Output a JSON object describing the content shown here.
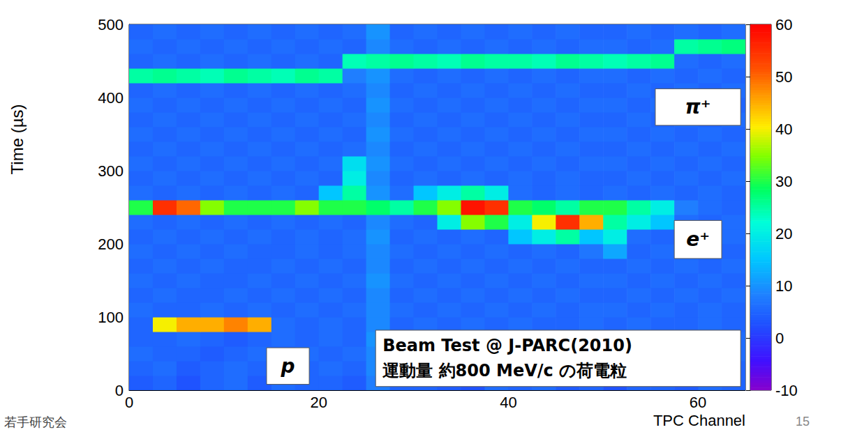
{
  "chart_data": {
    "type": "heatmap",
    "x_label": "TPC Channel",
    "y_label": "Time (µs)",
    "xlim": [
      0,
      65
    ],
    "xticks": [
      0,
      20,
      40,
      60
    ],
    "ylim": [
      0,
      500
    ],
    "yticks": [
      0,
      100,
      200,
      300,
      400,
      500
    ],
    "grid": false,
    "x_bins": [
      0,
      2.5,
      5,
      7.5,
      10,
      12.5,
      15,
      17.5,
      20,
      22.5,
      25,
      27.5,
      30,
      32.5,
      35,
      37.5,
      40,
      42.5,
      45,
      47.5,
      50,
      52.5,
      55,
      57.5,
      60,
      62.5,
      65
    ],
    "y_bins": [
      0,
      20,
      40,
      60,
      80,
      100,
      120,
      140,
      160,
      180,
      200,
      220,
      240,
      260,
      280,
      300,
      320,
      340,
      360,
      380,
      400,
      420,
      440,
      460,
      480,
      500
    ],
    "z": [
      [
        4,
        5,
        3,
        5,
        6,
        4,
        6,
        5,
        5,
        4,
        8,
        5,
        5,
        4,
        3,
        6,
        5,
        6,
        4,
        5,
        3,
        5,
        5,
        4,
        6,
        5
      ],
      [
        5,
        6,
        4,
        5,
        6,
        5,
        7,
        5,
        6,
        5,
        9,
        5,
        6,
        5,
        4,
        6,
        5,
        7,
        5,
        6,
        4,
        5,
        6,
        5,
        7,
        5
      ],
      [
        6,
        5,
        5,
        4,
        5,
        6,
        5,
        6,
        5,
        6,
        9,
        4,
        5,
        6,
        5,
        5,
        6,
        5,
        6,
        5,
        5,
        6,
        5,
        6,
        5,
        6
      ],
      [
        5,
        5,
        6,
        5,
        4,
        5,
        6,
        5,
        6,
        5,
        10,
        5,
        6,
        5,
        6,
        4,
        5,
        6,
        5,
        6,
        5,
        5,
        6,
        5,
        5,
        6
      ],
      [
        5,
        40,
        45,
        45,
        48,
        45,
        6,
        5,
        6,
        5,
        9,
        5,
        6,
        5,
        6,
        5,
        6,
        5,
        5,
        6,
        5,
        6,
        5,
        5,
        6,
        5
      ],
      [
        6,
        5,
        5,
        6,
        5,
        6,
        5,
        6,
        5,
        6,
        9,
        6,
        5,
        6,
        5,
        6,
        5,
        6,
        5,
        6,
        6,
        5,
        6,
        5,
        6,
        5
      ],
      [
        5,
        6,
        5,
        5,
        6,
        5,
        6,
        5,
        6,
        5,
        9,
        5,
        6,
        5,
        6,
        5,
        6,
        5,
        6,
        5,
        5,
        6,
        5,
        6,
        5,
        6
      ],
      [
        6,
        5,
        6,
        5,
        5,
        6,
        5,
        6,
        5,
        6,
        10,
        6,
        5,
        6,
        5,
        6,
        5,
        6,
        5,
        6,
        6,
        5,
        6,
        5,
        6,
        5
      ],
      [
        5,
        6,
        5,
        6,
        5,
        5,
        6,
        5,
        6,
        5,
        9,
        5,
        6,
        5,
        6,
        5,
        6,
        5,
        6,
        5,
        5,
        6,
        5,
        6,
        5,
        6
      ],
      [
        6,
        5,
        6,
        5,
        6,
        5,
        5,
        6,
        5,
        6,
        9,
        6,
        5,
        6,
        5,
        6,
        5,
        6,
        5,
        7,
        12,
        5,
        6,
        5,
        6,
        5
      ],
      [
        5,
        6,
        5,
        6,
        5,
        6,
        5,
        6,
        5,
        6,
        10,
        5,
        6,
        5,
        6,
        5,
        15,
        20,
        25,
        15,
        20,
        6,
        5,
        6,
        5,
        6
      ],
      [
        6,
        5,
        6,
        5,
        6,
        5,
        6,
        5,
        6,
        5,
        9,
        6,
        5,
        20,
        35,
        30,
        20,
        40,
        55,
        45,
        25,
        20,
        15,
        6,
        5,
        6
      ],
      [
        30,
        55,
        50,
        35,
        30,
        30,
        30,
        35,
        30,
        30,
        28,
        25,
        30,
        35,
        58,
        55,
        30,
        28,
        25,
        30,
        30,
        25,
        20,
        8,
        6,
        5
      ],
      [
        6,
        5,
        6,
        5,
        6,
        5,
        6,
        5,
        15,
        25,
        10,
        6,
        15,
        20,
        25,
        20,
        6,
        5,
        6,
        5,
        6,
        5,
        6,
        5,
        6,
        5
      ],
      [
        5,
        6,
        5,
        6,
        5,
        6,
        5,
        6,
        5,
        20,
        9,
        5,
        6,
        5,
        6,
        5,
        6,
        5,
        6,
        5,
        5,
        6,
        5,
        6,
        5,
        6
      ],
      [
        6,
        5,
        6,
        5,
        6,
        5,
        6,
        5,
        6,
        18,
        10,
        6,
        5,
        6,
        5,
        6,
        5,
        6,
        5,
        6,
        6,
        5,
        6,
        5,
        6,
        5
      ],
      [
        5,
        6,
        5,
        6,
        5,
        6,
        5,
        6,
        5,
        6,
        9,
        5,
        6,
        5,
        6,
        5,
        6,
        5,
        6,
        5,
        5,
        6,
        5,
        6,
        5,
        6
      ],
      [
        6,
        5,
        6,
        5,
        6,
        5,
        6,
        5,
        6,
        5,
        10,
        6,
        5,
        6,
        5,
        6,
        5,
        6,
        5,
        6,
        6,
        5,
        6,
        5,
        6,
        5
      ],
      [
        5,
        6,
        5,
        6,
        5,
        6,
        5,
        6,
        5,
        6,
        9,
        5,
        6,
        5,
        6,
        5,
        6,
        5,
        6,
        5,
        5,
        6,
        5,
        6,
        5,
        6
      ],
      [
        6,
        5,
        6,
        5,
        6,
        5,
        6,
        5,
        6,
        5,
        10,
        6,
        5,
        6,
        5,
        6,
        5,
        6,
        5,
        6,
        6,
        5,
        6,
        5,
        6,
        5
      ],
      [
        5,
        6,
        5,
        6,
        5,
        6,
        5,
        6,
        5,
        6,
        9,
        5,
        6,
        5,
        6,
        5,
        6,
        5,
        6,
        5,
        5,
        6,
        5,
        6,
        5,
        6
      ],
      [
        25,
        26,
        25,
        24,
        26,
        25,
        24,
        26,
        25,
        8,
        10,
        6,
        5,
        6,
        5,
        6,
        5,
        6,
        5,
        6,
        6,
        5,
        6,
        5,
        6,
        5
      ],
      [
        5,
        6,
        5,
        6,
        5,
        6,
        5,
        6,
        5,
        24,
        25,
        26,
        25,
        24,
        26,
        25,
        25,
        24,
        26,
        25,
        24,
        25,
        26,
        6,
        5,
        6
      ],
      [
        6,
        5,
        6,
        5,
        6,
        5,
        6,
        5,
        6,
        5,
        9,
        6,
        5,
        6,
        5,
        6,
        5,
        6,
        5,
        6,
        6,
        5,
        6,
        25,
        26,
        27
      ],
      [
        5,
        6,
        5,
        6,
        5,
        6,
        5,
        6,
        5,
        6,
        10,
        5,
        6,
        5,
        6,
        5,
        6,
        5,
        6,
        5,
        5,
        6,
        5,
        6,
        5,
        6
      ]
    ],
    "colorbar": {
      "range": [
        -10,
        60
      ],
      "ticks": [
        -10,
        0,
        10,
        20,
        30,
        40,
        50,
        60
      ]
    },
    "labels": [
      "π⁺",
      "e⁺",
      "p"
    ],
    "info_box": [
      "Beam Test @ J-PARC(2010)",
      "運動量 約800 MeV/c の荷電粒"
    ],
    "footer": "若手研究会",
    "page_number": 15
  }
}
